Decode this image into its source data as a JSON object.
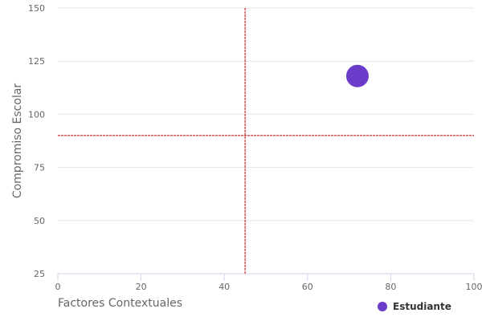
{
  "chart_data": {
    "type": "scatter",
    "title": "",
    "xlabel": "Factores Contextuales",
    "ylabel": "Compromiso Escolar",
    "xlim": [
      0,
      100
    ],
    "ylim": [
      25,
      150
    ],
    "x_ticks": [
      "0",
      "20",
      "40",
      "60",
      "80",
      "100"
    ],
    "y_ticks": [
      "25",
      "50",
      "75",
      "100",
      "125",
      "150"
    ],
    "grid": true,
    "reference_lines": {
      "x": 45,
      "y": 90,
      "color": "#c00000"
    },
    "series": [
      {
        "name": "Estudiante",
        "color": "#6a3cc9",
        "points": [
          {
            "x": 72,
            "y": 118
          }
        ]
      }
    ],
    "legend": {
      "placement": "bottom-right"
    }
  }
}
